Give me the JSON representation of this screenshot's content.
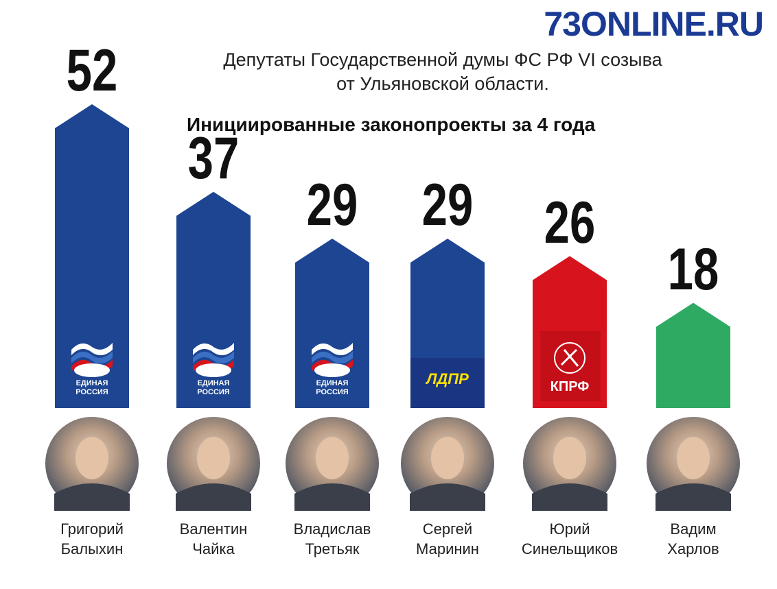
{
  "chart_data": {
    "type": "bar",
    "brand": "73ONLINE.RU",
    "title": "Депутаты Государственной думы ФС РФ VI созыва\nот Ульяновской области.",
    "subtitle": "Инициированные законопроекты за 4 года",
    "categories": [
      "Григорий\nБалыхин",
      "Валентин\nЧайка",
      "Владислав\nТретьяк",
      "Сергей\nМаринин",
      "Юрий\nСинельщиков",
      "Вадим\nХарлов"
    ],
    "values": [
      52,
      37,
      29,
      29,
      26,
      18
    ],
    "colors": [
      "#1d4592",
      "#1d4592",
      "#1d4592",
      "#1d4592",
      "#d7141e",
      "#2faa62"
    ],
    "parties": [
      "ЕДИНАЯ\nРОССИЯ",
      "ЕДИНАЯ\nРОССИЯ",
      "ЕДИНАЯ\nРОССИЯ",
      "ЛДПР",
      "КПРФ",
      null
    ]
  }
}
